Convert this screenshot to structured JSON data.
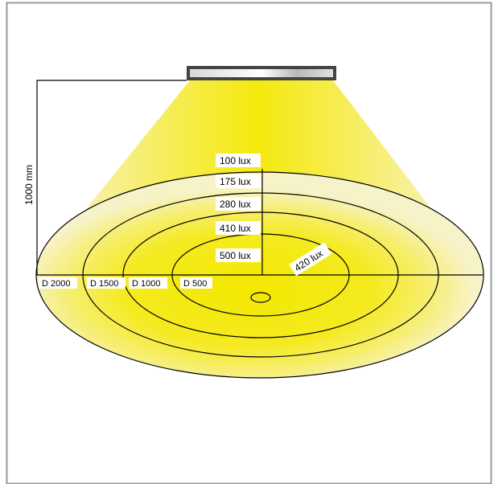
{
  "diagram": {
    "height_label": "1000 mm",
    "lux_labels": [
      "100 lux",
      "175 lux",
      "280 lux",
      "410 lux",
      "500 lux"
    ],
    "radial_label": "420 lux",
    "diameter_labels": [
      "D 2000",
      "D 1500",
      "D 1000",
      "D 500"
    ],
    "colors": {
      "light_core": "#f4e800",
      "light_mid": "#f6ec3a",
      "light_edge": "#f7f3c8",
      "frame": "#9a9a9a",
      "luminaire_frame": "#444444"
    }
  }
}
